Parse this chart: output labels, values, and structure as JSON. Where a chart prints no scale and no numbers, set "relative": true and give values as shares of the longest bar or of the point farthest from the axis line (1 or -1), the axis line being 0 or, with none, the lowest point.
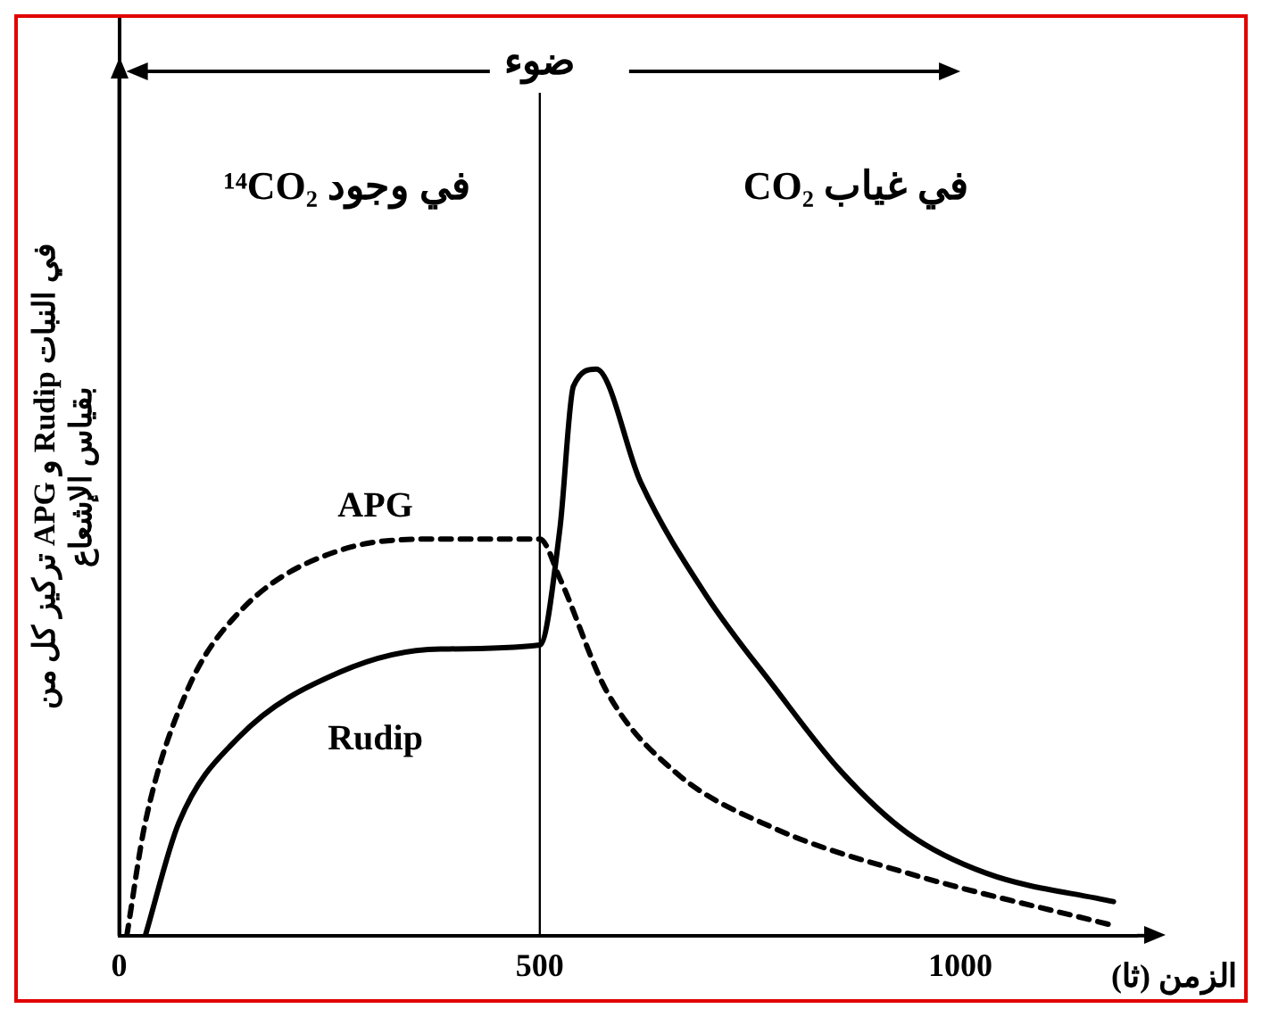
{
  "chart_data": {
    "type": "line",
    "relative": true,
    "xlabel": "الزمن (ثا)",
    "ylabel": "تركيز كل من APG و Rudip في النبات\nبقياس الإشعاع",
    "annotations": [
      "ضوء",
      "في وجود ¹⁴CO₂",
      "في غياب CO₂"
    ],
    "xlim": [
      0,
      1210
    ],
    "xticks": [
      0,
      500,
      1000
    ],
    "ref_lines": [
      {
        "axis": "x",
        "value": 500,
        "color": "#000000"
      }
    ],
    "grid": false,
    "legend": false,
    "marker": "none",
    "series": [
      {
        "name": "APG",
        "color": "#000000",
        "line_style": "dashed",
        "x": [
          9,
          31,
          80,
          142,
          262,
          382,
          500,
          524,
          580,
          660,
          778,
          938,
          1176
        ],
        "values": [
          0,
          0.2,
          0.43,
          0.57,
          0.68,
          0.7,
          0.7,
          0.63,
          0.43,
          0.29,
          0.19,
          0.11,
          0.02
        ]
      },
      {
        "name": "Rudip",
        "color": "#000000",
        "line_style": "solid",
        "x": [
          31,
          71,
          142,
          262,
          382,
          500,
          524,
          540,
          567,
          620,
          698,
          778,
          858,
          938,
          1031,
          1182
        ],
        "values": [
          0,
          0.2,
          0.35,
          0.465,
          0.506,
          0.513,
          0.72,
          0.97,
          1,
          0.8,
          0.6,
          0.44,
          0.29,
          0.18,
          0.11,
          0.06
        ]
      }
    ]
  }
}
